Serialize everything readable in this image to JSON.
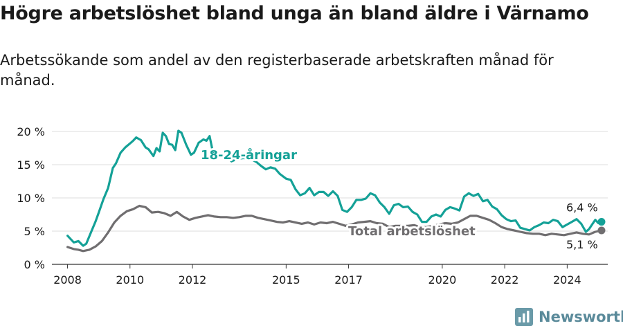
{
  "title": "Högre arbetslöshet bland unga än bland äldre i Värnamo",
  "subtitle": "Arbetssökande som andel av den registerbaserade arbetskraften månad för månad.",
  "brand": {
    "name": "Newsworthy",
    "icon": "bar-chart-logo-icon"
  },
  "chart_data": {
    "type": "line",
    "title": "Högre arbetslöshet bland unga än bland äldre i Värnamo",
    "subtitle": "Arbetssökande som andel av den registerbaserade arbetskraften månad för månad.",
    "x_ticks": [
      "2008",
      "2010",
      "2012",
      "2015",
      "2017",
      "2020",
      "2022",
      "2024"
    ],
    "y_ticks": [
      "0 %",
      "5 %",
      "10 %",
      "15 %",
      "20 %"
    ],
    "ylim": [
      0,
      20
    ],
    "xlim": [
      2007.5,
      2025.3
    ],
    "grid": true,
    "series": [
      {
        "name": "18-24-åringar",
        "color": "#14a197",
        "end_label": "6,4 %",
        "points": [
          [
            2008.0,
            4.3
          ],
          [
            2008.2,
            3.3
          ],
          [
            2008.35,
            3.5
          ],
          [
            2008.5,
            2.8
          ],
          [
            2008.6,
            3.1
          ],
          [
            2008.75,
            4.8
          ],
          [
            2008.9,
            6.5
          ],
          [
            2009.0,
            7.8
          ],
          [
            2009.15,
            9.8
          ],
          [
            2009.3,
            11.5
          ],
          [
            2009.45,
            14.5
          ],
          [
            2009.55,
            15.2
          ],
          [
            2009.7,
            16.8
          ],
          [
            2009.85,
            17.6
          ],
          [
            2010.0,
            18.2
          ],
          [
            2010.1,
            18.6
          ],
          [
            2010.2,
            19.1
          ],
          [
            2010.35,
            18.7
          ],
          [
            2010.5,
            17.6
          ],
          [
            2010.6,
            17.3
          ],
          [
            2010.75,
            16.3
          ],
          [
            2010.85,
            17.5
          ],
          [
            2010.95,
            17.0
          ],
          [
            2011.05,
            19.8
          ],
          [
            2011.15,
            19.3
          ],
          [
            2011.25,
            18.1
          ],
          [
            2011.35,
            18.0
          ],
          [
            2011.45,
            17.2
          ],
          [
            2011.55,
            20.1
          ],
          [
            2011.65,
            19.8
          ],
          [
            2011.8,
            18.0
          ],
          [
            2011.95,
            16.5
          ],
          [
            2012.05,
            16.8
          ],
          [
            2012.2,
            18.3
          ],
          [
            2012.35,
            18.8
          ],
          [
            2012.45,
            18.6
          ],
          [
            2012.55,
            19.3
          ],
          [
            2012.65,
            17.0
          ],
          [
            2012.8,
            16.5
          ],
          [
            2012.95,
            16.6
          ],
          [
            2013.1,
            16.3
          ],
          [
            2013.25,
            15.5
          ],
          [
            2013.45,
            15.9
          ],
          [
            2013.65,
            16.0
          ],
          [
            2013.85,
            15.9
          ],
          [
            2014.05,
            15.4
          ],
          [
            2014.2,
            14.8
          ],
          [
            2014.35,
            14.3
          ],
          [
            2014.5,
            14.6
          ],
          [
            2014.65,
            14.4
          ],
          [
            2014.8,
            13.6
          ],
          [
            2015.0,
            12.9
          ],
          [
            2015.15,
            12.7
          ],
          [
            2015.3,
            11.3
          ],
          [
            2015.45,
            10.4
          ],
          [
            2015.6,
            10.7
          ],
          [
            2015.75,
            11.5
          ],
          [
            2015.9,
            10.4
          ],
          [
            2016.05,
            10.9
          ],
          [
            2016.2,
            10.9
          ],
          [
            2016.35,
            10.3
          ],
          [
            2016.5,
            11.0
          ],
          [
            2016.65,
            10.3
          ],
          [
            2016.8,
            8.2
          ],
          [
            2016.95,
            7.9
          ],
          [
            2017.1,
            8.6
          ],
          [
            2017.25,
            9.7
          ],
          [
            2017.4,
            9.7
          ],
          [
            2017.55,
            9.9
          ],
          [
            2017.7,
            10.7
          ],
          [
            2017.85,
            10.4
          ],
          [
            2018.0,
            9.3
          ],
          [
            2018.15,
            8.6
          ],
          [
            2018.3,
            7.6
          ],
          [
            2018.45,
            8.9
          ],
          [
            2018.6,
            9.1
          ],
          [
            2018.75,
            8.6
          ],
          [
            2018.9,
            8.7
          ],
          [
            2019.05,
            7.9
          ],
          [
            2019.2,
            7.5
          ],
          [
            2019.35,
            6.4
          ],
          [
            2019.5,
            6.4
          ],
          [
            2019.65,
            7.2
          ],
          [
            2019.8,
            7.5
          ],
          [
            2019.95,
            7.2
          ],
          [
            2020.1,
            8.2
          ],
          [
            2020.25,
            8.6
          ],
          [
            2020.4,
            8.4
          ],
          [
            2020.55,
            8.1
          ],
          [
            2020.7,
            10.2
          ],
          [
            2020.85,
            10.7
          ],
          [
            2021.0,
            10.3
          ],
          [
            2021.15,
            10.6
          ],
          [
            2021.3,
            9.5
          ],
          [
            2021.45,
            9.7
          ],
          [
            2021.6,
            8.7
          ],
          [
            2021.75,
            8.3
          ],
          [
            2021.9,
            7.4
          ],
          [
            2022.05,
            6.8
          ],
          [
            2022.2,
            6.5
          ],
          [
            2022.35,
            6.6
          ],
          [
            2022.5,
            5.5
          ],
          [
            2022.65,
            5.3
          ],
          [
            2022.8,
            5.1
          ],
          [
            2022.95,
            5.6
          ],
          [
            2023.1,
            5.9
          ],
          [
            2023.25,
            6.3
          ],
          [
            2023.4,
            6.2
          ],
          [
            2023.55,
            6.7
          ],
          [
            2023.7,
            6.5
          ],
          [
            2023.85,
            5.6
          ],
          [
            2024.0,
            6.0
          ],
          [
            2024.15,
            6.4
          ],
          [
            2024.3,
            6.8
          ],
          [
            2024.45,
            6.1
          ],
          [
            2024.6,
            4.9
          ],
          [
            2024.7,
            5.3
          ],
          [
            2024.8,
            6.0
          ],
          [
            2024.9,
            6.7
          ],
          [
            2025.0,
            6.2
          ],
          [
            2025.1,
            6.4
          ]
        ]
      },
      {
        "name": "Total arbetslöshet",
        "color": "#706e70",
        "end_label": "5,1 %",
        "points": [
          [
            2008.0,
            2.6
          ],
          [
            2008.2,
            2.3
          ],
          [
            2008.35,
            2.2
          ],
          [
            2008.5,
            2.0
          ],
          [
            2008.7,
            2.2
          ],
          [
            2008.9,
            2.7
          ],
          [
            2009.1,
            3.5
          ],
          [
            2009.3,
            4.8
          ],
          [
            2009.5,
            6.3
          ],
          [
            2009.7,
            7.3
          ],
          [
            2009.9,
            8.0
          ],
          [
            2010.1,
            8.3
          ],
          [
            2010.3,
            8.8
          ],
          [
            2010.5,
            8.6
          ],
          [
            2010.7,
            7.8
          ],
          [
            2010.9,
            7.9
          ],
          [
            2011.1,
            7.7
          ],
          [
            2011.3,
            7.3
          ],
          [
            2011.5,
            7.9
          ],
          [
            2011.7,
            7.2
          ],
          [
            2011.9,
            6.7
          ],
          [
            2012.1,
            7.0
          ],
          [
            2012.3,
            7.2
          ],
          [
            2012.5,
            7.4
          ],
          [
            2012.7,
            7.2
          ],
          [
            2012.9,
            7.1
          ],
          [
            2013.1,
            7.1
          ],
          [
            2013.3,
            7.0
          ],
          [
            2013.5,
            7.1
          ],
          [
            2013.7,
            7.3
          ],
          [
            2013.9,
            7.3
          ],
          [
            2014.1,
            7.0
          ],
          [
            2014.3,
            6.8
          ],
          [
            2014.5,
            6.6
          ],
          [
            2014.7,
            6.4
          ],
          [
            2014.9,
            6.3
          ],
          [
            2015.1,
            6.5
          ],
          [
            2015.3,
            6.3
          ],
          [
            2015.5,
            6.1
          ],
          [
            2015.7,
            6.3
          ],
          [
            2015.9,
            6.0
          ],
          [
            2016.1,
            6.3
          ],
          [
            2016.3,
            6.2
          ],
          [
            2016.5,
            6.4
          ],
          [
            2016.7,
            6.1
          ],
          [
            2016.9,
            5.8
          ],
          [
            2017.1,
            6.0
          ],
          [
            2017.3,
            6.3
          ],
          [
            2017.5,
            6.4
          ],
          [
            2017.7,
            6.5
          ],
          [
            2017.9,
            6.2
          ],
          [
            2018.1,
            6.1
          ],
          [
            2018.3,
            5.6
          ],
          [
            2018.5,
            5.8
          ],
          [
            2018.7,
            5.8
          ],
          [
            2018.9,
            5.8
          ],
          [
            2019.1,
            5.9
          ],
          [
            2019.3,
            5.6
          ],
          [
            2019.5,
            5.6
          ],
          [
            2019.7,
            5.8
          ],
          [
            2019.9,
            6.0
          ],
          [
            2020.1,
            6.2
          ],
          [
            2020.3,
            6.1
          ],
          [
            2020.5,
            6.3
          ],
          [
            2020.7,
            6.8
          ],
          [
            2020.9,
            7.3
          ],
          [
            2021.1,
            7.3
          ],
          [
            2021.3,
            7.0
          ],
          [
            2021.5,
            6.7
          ],
          [
            2021.7,
            6.2
          ],
          [
            2021.9,
            5.6
          ],
          [
            2022.1,
            5.3
          ],
          [
            2022.3,
            5.1
          ],
          [
            2022.5,
            4.9
          ],
          [
            2022.7,
            4.7
          ],
          [
            2022.9,
            4.6
          ],
          [
            2023.1,
            4.6
          ],
          [
            2023.3,
            4.4
          ],
          [
            2023.5,
            4.6
          ],
          [
            2023.7,
            4.5
          ],
          [
            2023.9,
            4.4
          ],
          [
            2024.1,
            4.6
          ],
          [
            2024.3,
            4.8
          ],
          [
            2024.5,
            4.6
          ],
          [
            2024.7,
            4.5
          ],
          [
            2024.9,
            4.9
          ],
          [
            2025.1,
            5.1
          ]
        ]
      }
    ]
  }
}
